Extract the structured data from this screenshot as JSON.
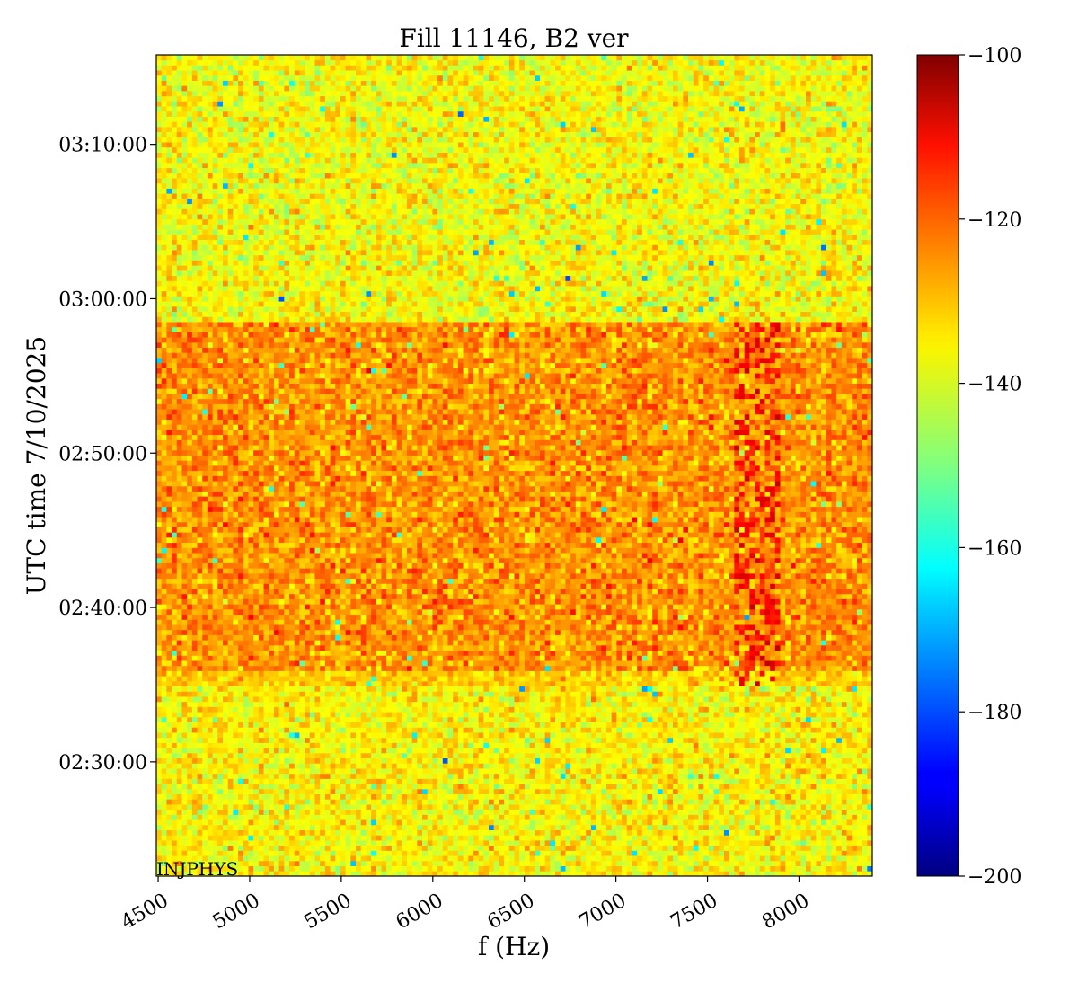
{
  "chart_data": {
    "type": "heatmap",
    "title": "Fill 11146, B2 ver",
    "xlabel": "f (Hz)",
    "ylabel": "UTC time 7/10/2025",
    "xlim": [
      4490,
      8400
    ],
    "x_ticks": [
      4500,
      5000,
      5500,
      6000,
      6500,
      7000,
      7500,
      8000
    ],
    "x_tick_labels": [
      "4500",
      "5000",
      "5500",
      "6000",
      "6500",
      "7000",
      "7500",
      "8000"
    ],
    "ylim_minutes_after_0220": [
      2.6,
      55.8
    ],
    "y_ticks": [
      "02:30:00",
      "02:40:00",
      "02:50:00",
      "03:00:00",
      "03:10:00"
    ],
    "colorbar": {
      "colormap": "jet",
      "range": [
        -200,
        -100
      ],
      "ticks": [
        -100,
        -120,
        -140,
        -160,
        -180,
        -200
      ],
      "tick_labels": [
        "−100",
        "−120",
        "−140",
        "−160",
        "−180",
        "−200"
      ]
    },
    "regions": [
      {
        "name": "background_before",
        "time_start": "02:22:36",
        "time_end": "02:34:48",
        "mean_level": -137,
        "noise": 5
      },
      {
        "name": "transition",
        "time_start": "02:34:48",
        "time_end": "02:35:54",
        "mean_level": -133,
        "noise": 4
      },
      {
        "name": "beam_on",
        "time_start": "02:35:54",
        "time_end": "02:58:30",
        "mean_level": -127,
        "noise": 5
      },
      {
        "name": "background_after",
        "time_start": "02:58:30",
        "time_end": "03:15:48",
        "mean_level": -138,
        "noise": 5
      }
    ],
    "features": [
      {
        "name": "line_group",
        "freq_range_hz": [
          7650,
          7900
        ],
        "time_start": "02:34:48",
        "time_end": "02:58:30",
        "level": -113
      }
    ],
    "annotation": "INJPHYS"
  }
}
